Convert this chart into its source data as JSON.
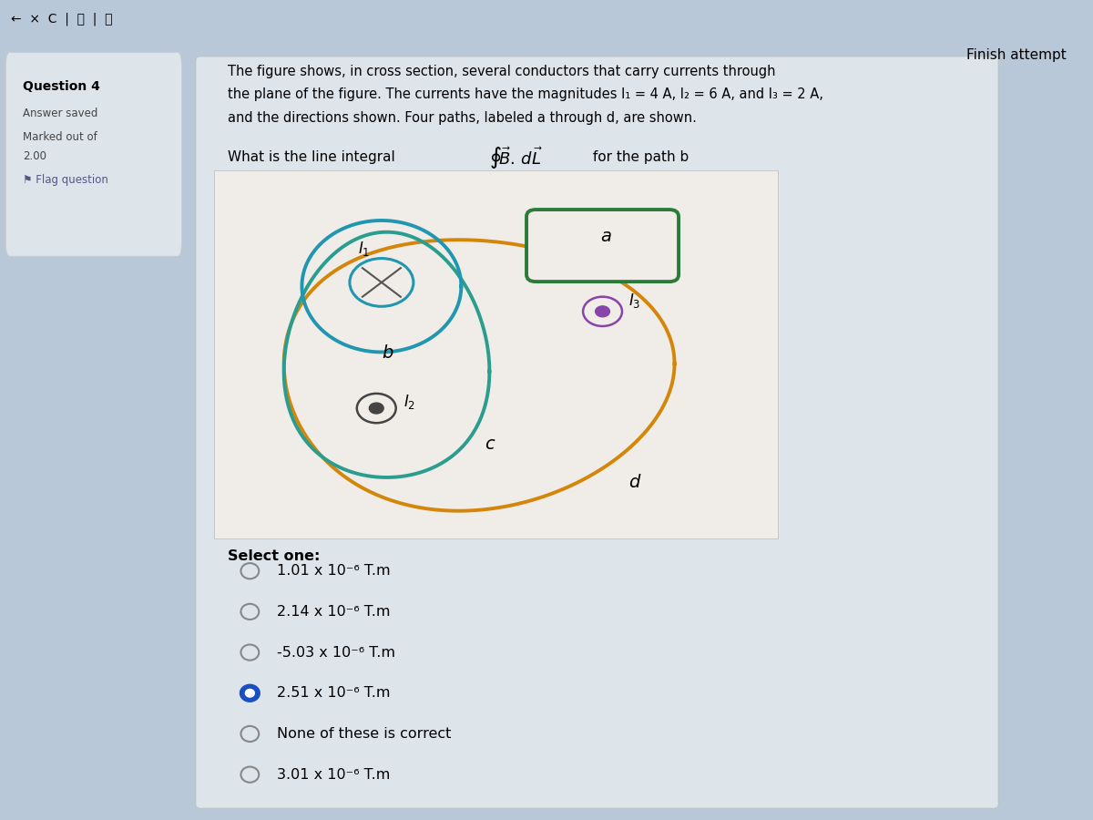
{
  "bg_color": "#b8c8d8",
  "sidebar_bg": "#dcdcdc",
  "content_bg": "#c8d4dc",
  "panel_bg": "#f0ece4",
  "topbar_bg": "#c0ccd4",
  "question_label": "Question 4",
  "answer_saved": "Answer saved",
  "marked_out": "Marked out of",
  "marks": "2.00",
  "flag_question": "⚑ Flag question",
  "finish_attempt": "Finish attempt",
  "desc_line1": "The figure shows, in cross section, several conductors that carry currents through",
  "desc_line2": "the plane of the figure. The currents have the magnitudes I₁ = 4 A, I₂ = 6 A, and I₃ = 2 A,",
  "desc_line3": "and the directions shown. Four paths, labeled a through d, are shown.",
  "options": [
    {
      "text": "1.01 x 10⁻⁶ T.m",
      "selected": false
    },
    {
      "text": "2.14 x 10⁻⁶ T.m",
      "selected": false
    },
    {
      "text": "-5.03 x 10⁻⁶ T.m",
      "selected": false
    },
    {
      "text": "2.51 x 10⁻⁶ T.m",
      "selected": true
    },
    {
      "text": "None of these is correct",
      "selected": false
    },
    {
      "text": "3.01 x 10⁻⁶ T.m",
      "selected": false
    }
  ],
  "select_one": "Select one:",
  "path_d_color": "#d4860a",
  "path_c_color": "#2a9d8f",
  "path_b_color": "#2196b0",
  "path_a_color": "#2a7a3a",
  "selected_radio_color": "#1a4fc4",
  "radio_color": "#888888"
}
